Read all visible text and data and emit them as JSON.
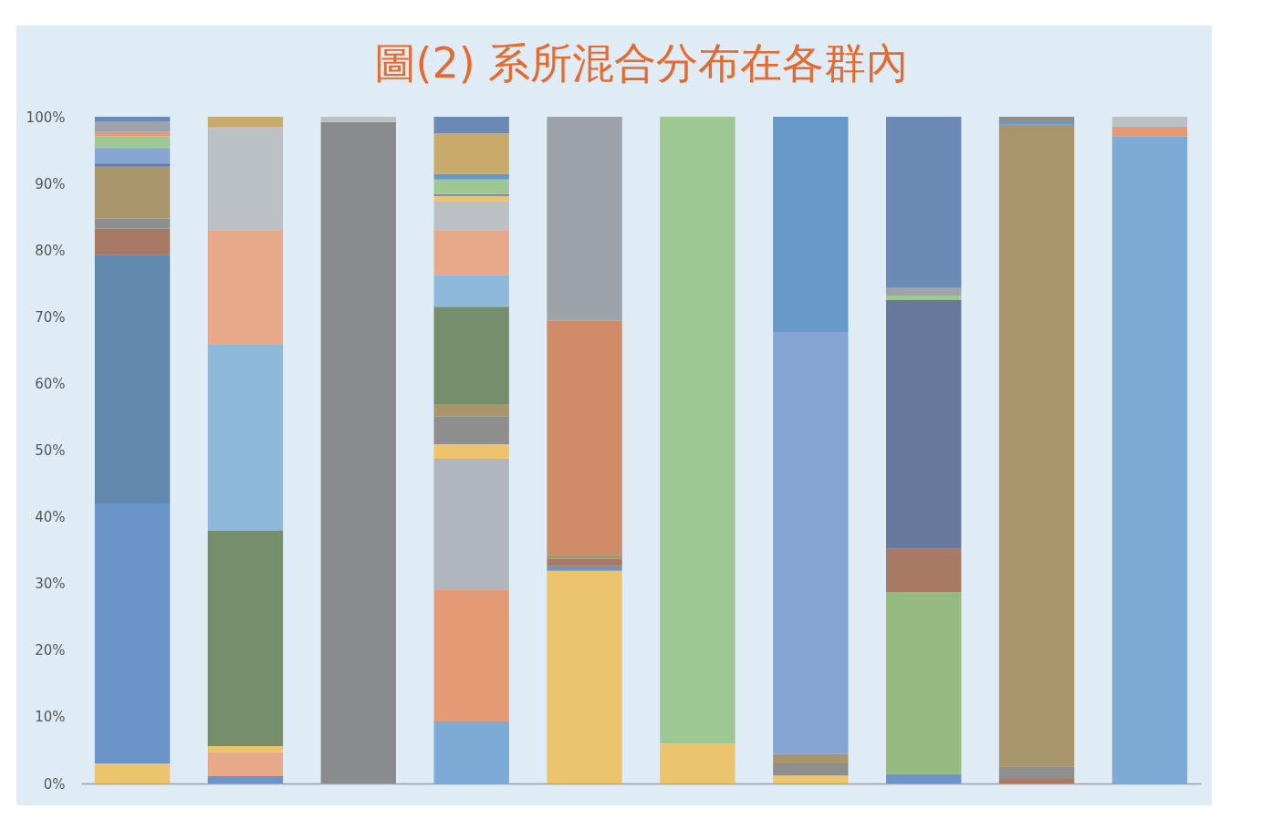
{
  "chart_data": {
    "type": "bar",
    "stacked": true,
    "title": "圖(2)  系所混合分布在各群內",
    "categories": [
      null,
      null,
      null,
      null,
      null,
      null,
      null,
      null,
      null,
      null
    ],
    "ylim": [
      0,
      100
    ],
    "yticks": [
      {
        "value": 0,
        "label": "0%"
      },
      {
        "value": 10,
        "label": "10%"
      },
      {
        "value": 20,
        "label": "20%"
      },
      {
        "value": 30,
        "label": "30%"
      },
      {
        "value": 40,
        "label": "40%"
      },
      {
        "value": 50,
        "label": "50%"
      },
      {
        "value": 60,
        "label": "60%"
      },
      {
        "value": 70,
        "label": "70%"
      },
      {
        "value": 80,
        "label": "80%"
      },
      {
        "value": 90,
        "label": "90%"
      },
      {
        "value": 100,
        "label": "100%"
      }
    ],
    "grid": false,
    "series": [
      {
        "values": [
          3.0,
          1.1,
          99.2,
          9.3,
          31.9,
          6.0,
          1.2,
          1.4,
          0.7,
          97.1
        ],
        "colors": [
          "#edc46e",
          "#6b95c9",
          "#898b8f",
          "#7eabd5",
          "#edc46e",
          "#edc46e",
          "#edc46e",
          "#6b95c9",
          "#a87a66",
          "#7eabd5"
        ]
      },
      {
        "values": [
          39.0,
          3.6,
          0.8,
          19.8,
          0.7,
          94.0,
          1.8,
          27.3,
          1.8,
          1.4
        ],
        "colors": [
          "#6b95c9",
          "#e8a98b",
          "#bbc0c4",
          "#e59a76",
          "#6b95c9",
          "#9ec794",
          "#8e8e8e",
          "#95bb80",
          "#8e8e8e",
          "#e59a76"
        ]
      },
      {
        "values": [
          37.3,
          0.9,
          null,
          19.6,
          1.1,
          null,
          1.4,
          6.5,
          96.3,
          1.5
        ],
        "colors": [
          "#6189ad",
          "#edc46e",
          null,
          "#b1b5bd",
          "#a87a66",
          null,
          "#a8956c",
          "#a87a66",
          "#a8956c",
          "#bbc0c4"
        ]
      },
      {
        "values": [
          3.9,
          32.3,
          null,
          2.2,
          0.6,
          null,
          63.3,
          37.3,
          0.5,
          null
        ],
        "colors": [
          "#a87a66",
          "#778e6d",
          null,
          "#edc46e",
          "#a8956c",
          null,
          "#86a5d3",
          "#67799c",
          "#6699c8",
          null
        ]
      },
      {
        "values": [
          1.5,
          27.9,
          null,
          4.2,
          35.1,
          null,
          32.3,
          0.7,
          0.7,
          null
        ],
        "colors": [
          "#8e8e8e",
          "#8fb9db",
          null,
          "#8e8e8e",
          "#d08b68",
          null,
          "#6699c8",
          "#9ec794",
          "#8e8e8e",
          null
        ]
      },
      {
        "values": [
          7.8,
          17.2,
          null,
          1.8,
          30.6,
          null,
          null,
          1.1,
          null,
          null
        ],
        "colors": [
          "#a8956c",
          "#e8a98b",
          null,
          "#a8956c",
          "#9ea3aa",
          null,
          null,
          "#9ea3aa",
          null,
          null
        ]
      },
      {
        "values": [
          0.5,
          15.5,
          null,
          14.6,
          null,
          null,
          null,
          25.7,
          null,
          null
        ],
        "colors": [
          "#67799c",
          "#bbc0c4",
          null,
          "#778e6d",
          null,
          null,
          null,
          "#6b8ab6",
          null,
          null
        ]
      },
      {
        "values": [
          2.3,
          1.5,
          null,
          4.8,
          null,
          null,
          null,
          null,
          null,
          null
        ],
        "colors": [
          "#86a5d3",
          "#c8aa6a",
          null,
          "#8fb9db",
          null,
          null,
          null,
          null,
          null,
          null
        ]
      },
      {
        "values": [
          1.8,
          null,
          null,
          6.7,
          null,
          null,
          null,
          null,
          null,
          null
        ],
        "colors": [
          "#9ec794",
          null,
          null,
          "#e8a98b",
          null,
          null,
          null,
          null,
          null,
          null
        ]
      },
      {
        "values": [
          0.6,
          null,
          null,
          4.3,
          null,
          null,
          null,
          null,
          null,
          null
        ],
        "colors": [
          "#e59a76",
          null,
          null,
          "#bbc0c4",
          null,
          null,
          null,
          null,
          null,
          null
        ]
      },
      {
        "values": [
          1.6,
          null,
          null,
          0.8,
          null,
          null,
          null,
          null,
          null,
          null
        ],
        "colors": [
          "#9ea3aa",
          null,
          null,
          "#edc46e",
          null,
          null,
          null,
          null,
          null,
          null
        ]
      },
      {
        "values": [
          0.7,
          null,
          null,
          0.3,
          null,
          null,
          null,
          null,
          null,
          null
        ],
        "colors": [
          "#6b8ab6",
          null,
          null,
          "#8e8e8e",
          null,
          null,
          null,
          null,
          null,
          null
        ]
      },
      {
        "values": [
          null,
          null,
          null,
          2.2,
          null,
          null,
          null,
          null,
          null,
          null
        ],
        "colors": [
          null,
          null,
          null,
          "#9ec794",
          null,
          null,
          null,
          null,
          null,
          null
        ]
      },
      {
        "values": [
          null,
          null,
          null,
          0.8,
          null,
          null,
          null,
          null,
          null,
          null
        ],
        "colors": [
          null,
          null,
          null,
          "#6699c8",
          null,
          null,
          null,
          null,
          null,
          null
        ]
      },
      {
        "values": [
          null,
          null,
          null,
          6.1,
          null,
          null,
          null,
          null,
          null,
          null
        ],
        "colors": [
          null,
          null,
          null,
          "#c8aa6a",
          null,
          null,
          null,
          null,
          null,
          null
        ]
      },
      {
        "values": [
          null,
          null,
          null,
          2.5,
          null,
          null,
          null,
          null,
          null,
          null
        ],
        "colors": [
          null,
          null,
          null,
          "#6b8ab6",
          null,
          null,
          null,
          null,
          null,
          null
        ]
      }
    ]
  }
}
